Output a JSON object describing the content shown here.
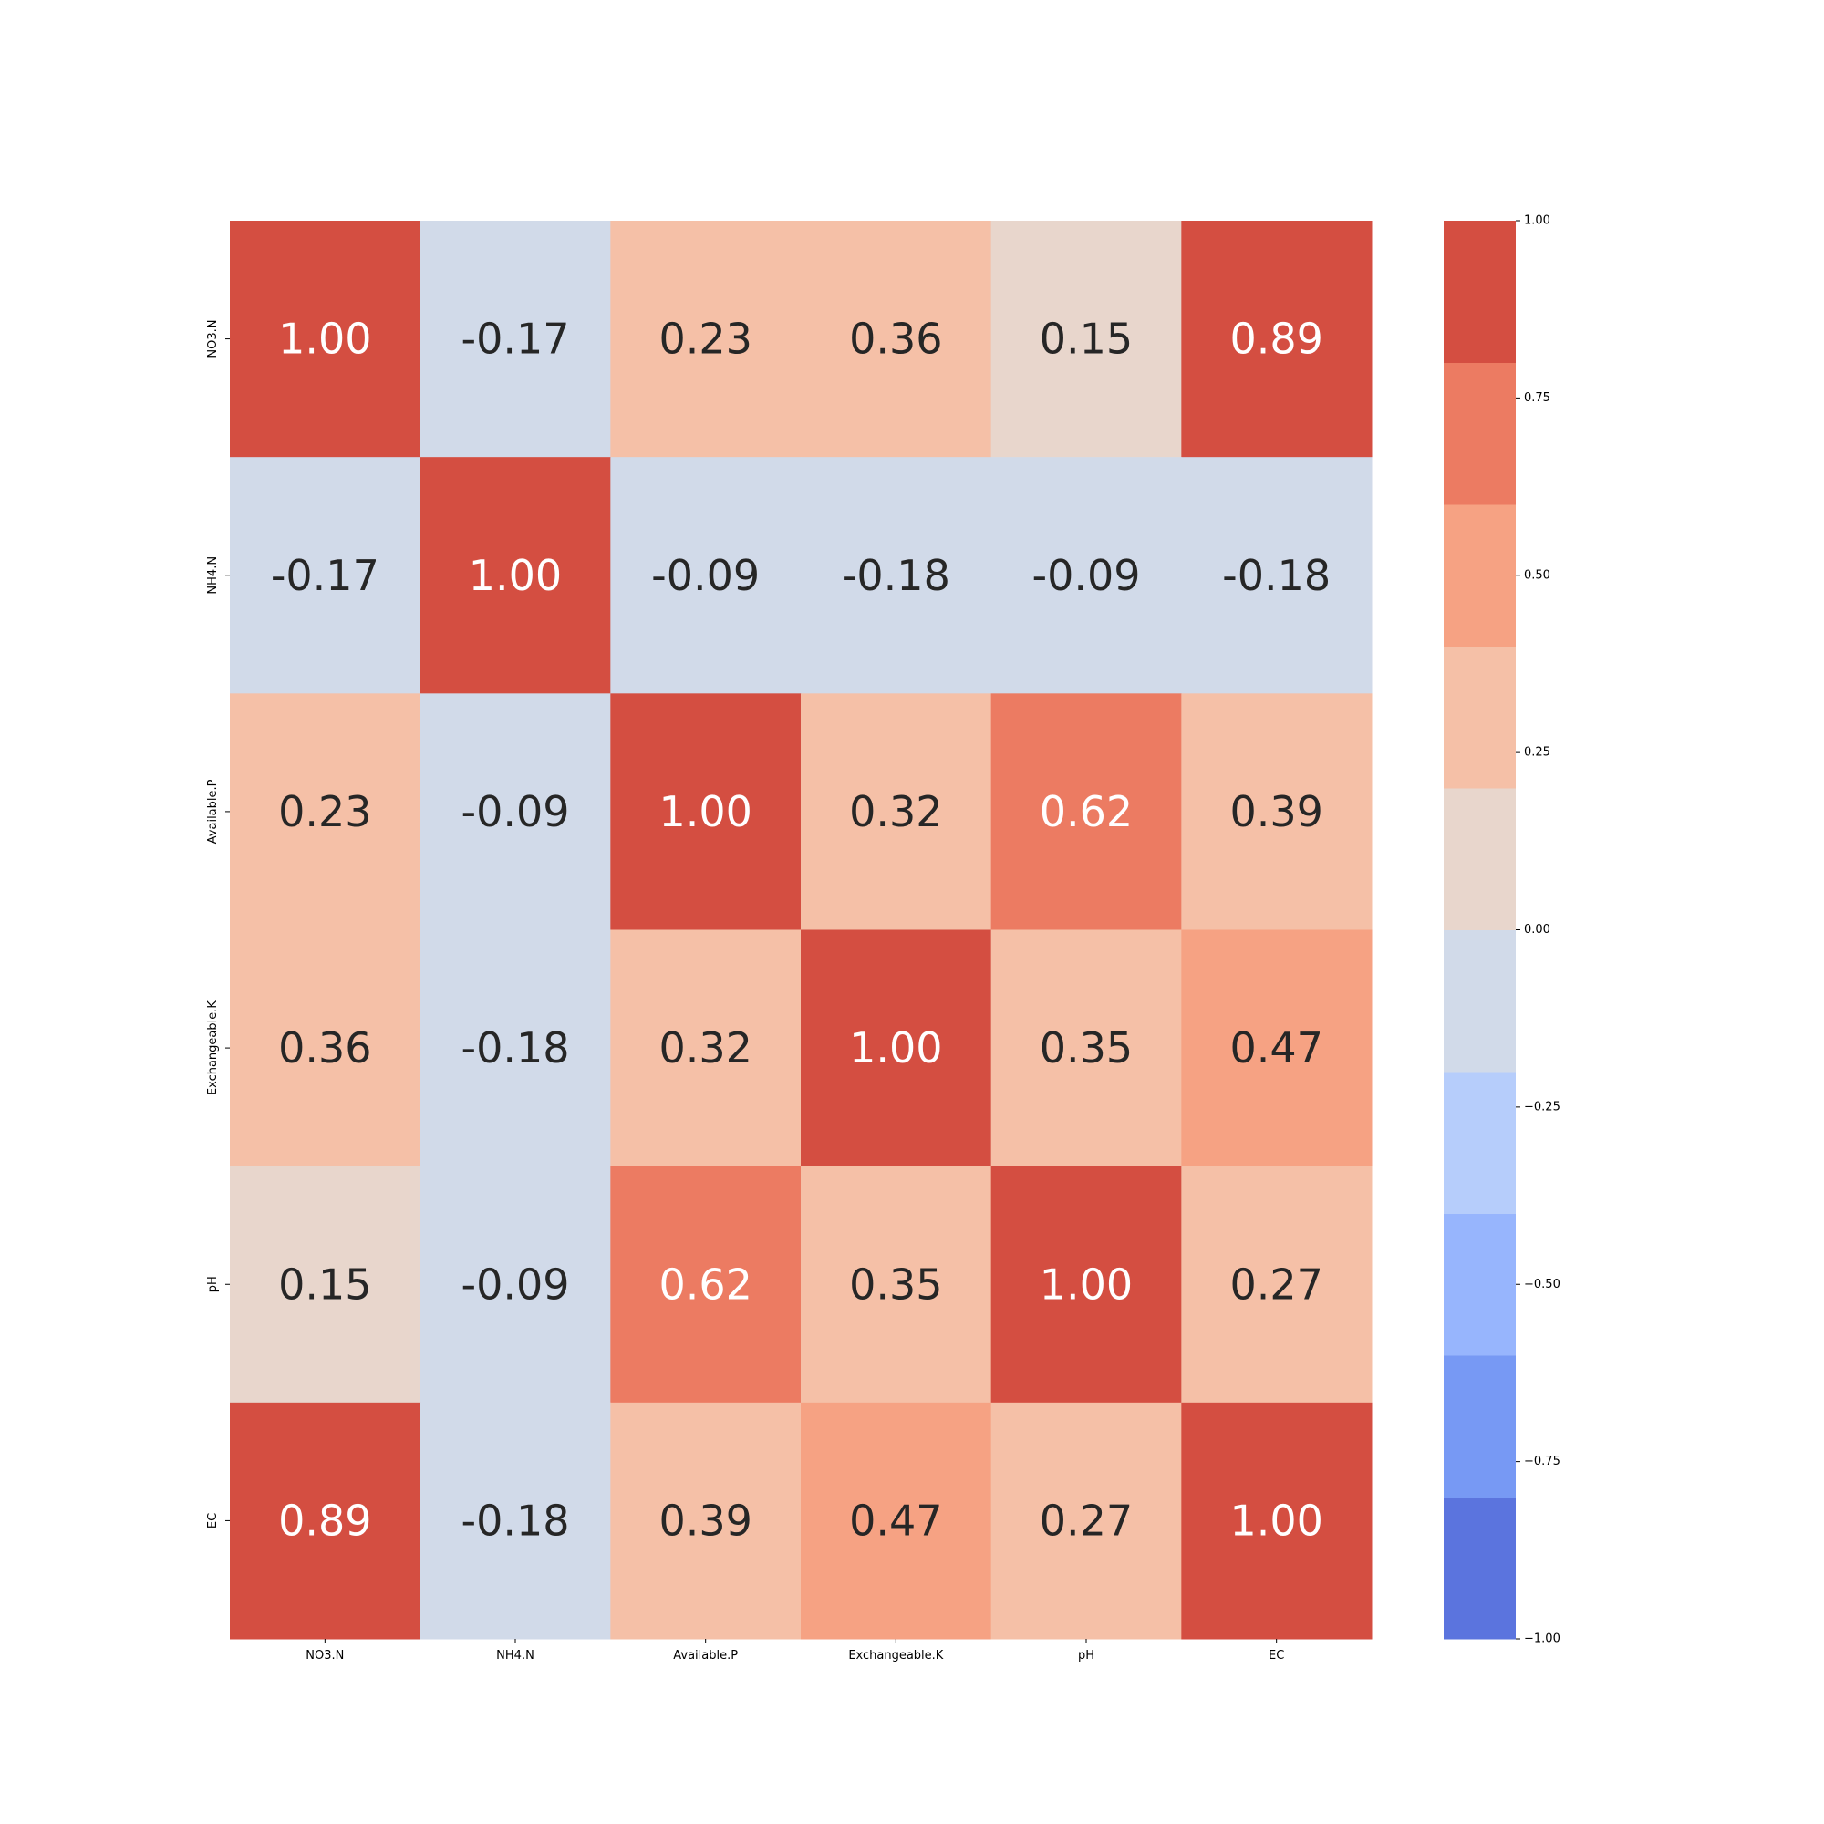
{
  "chart_data": {
    "type": "heatmap",
    "title": "",
    "xlabel": "",
    "ylabel": "",
    "x_categories": [
      "NO3.N",
      "NH4.N",
      "Available.P",
      "Exchangeable.K",
      "pH",
      "EC"
    ],
    "y_categories": [
      "NO3.N",
      "NH4.N",
      "Available.P",
      "Exchangeable.K",
      "pH",
      "EC"
    ],
    "values": [
      [
        1.0,
        -0.17,
        0.23,
        0.36,
        0.15,
        0.89
      ],
      [
        -0.17,
        1.0,
        -0.09,
        -0.18,
        -0.09,
        -0.18
      ],
      [
        0.23,
        -0.09,
        1.0,
        0.32,
        0.62,
        0.39
      ],
      [
        0.36,
        -0.18,
        0.32,
        1.0,
        0.35,
        0.47
      ],
      [
        0.15,
        -0.09,
        0.62,
        0.35,
        1.0,
        0.27
      ],
      [
        0.89,
        -0.18,
        0.39,
        0.47,
        0.27,
        1.0
      ]
    ],
    "annotation_format": "0.00",
    "colorbar": {
      "range": [
        -1.0,
        1.0
      ],
      "ticks": [
        1.0,
        0.75,
        0.5,
        0.25,
        0.0,
        -0.25,
        -0.5,
        -0.75,
        -1.0
      ],
      "tick_labels": [
        "1.00",
        "0.75",
        "0.50",
        "0.25",
        "0.00",
        "−0.25",
        "−0.50",
        "−0.75",
        "−1.00"
      ],
      "bins": [
        {
          "from": -1.0,
          "to": -0.8,
          "color": "#5b74de"
        },
        {
          "from": -0.8,
          "to": -0.6,
          "color": "#7799f4"
        },
        {
          "from": -0.6,
          "to": -0.4,
          "color": "#97b5fd"
        },
        {
          "from": -0.4,
          "to": -0.2,
          "color": "#b6cdfb"
        },
        {
          "from": -0.2,
          "to": 0.0,
          "color": "#d1dae9"
        },
        {
          "from": 0.0,
          "to": 0.2,
          "color": "#e8d6cc"
        },
        {
          "from": 0.2,
          "to": 0.4,
          "color": "#f5c0a7"
        },
        {
          "from": 0.4,
          "to": 0.6,
          "color": "#f6a283"
        },
        {
          "from": 0.6,
          "to": 0.8,
          "color": "#ec7b62"
        },
        {
          "from": 0.8,
          "to": 1.0,
          "color": "#d44e41"
        }
      ]
    },
    "text_colors": {
      "light": "#ffffff",
      "dark": "#262626"
    },
    "grid": false,
    "legend": "colorbar-right"
  }
}
